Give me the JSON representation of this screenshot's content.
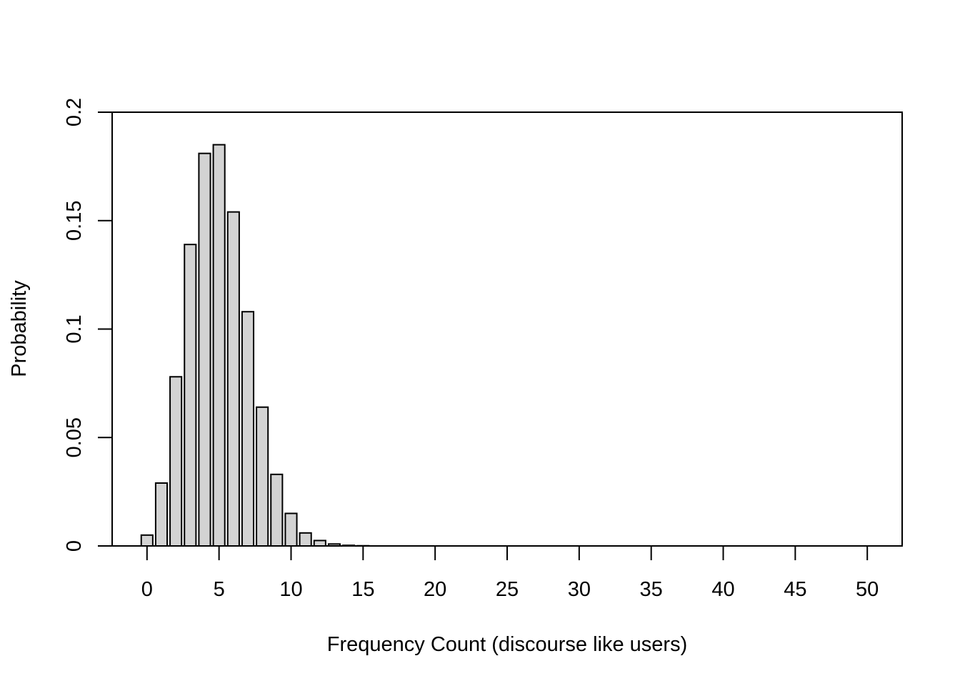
{
  "chart_data": {
    "type": "bar",
    "xlabel": "Frequency Count (discourse like users)",
    "ylabel": "Probability",
    "categories": [
      0,
      1,
      2,
      3,
      4,
      5,
      6,
      7,
      8,
      9,
      10,
      11,
      12,
      13,
      14,
      15,
      16,
      17,
      18,
      19,
      20,
      21,
      22,
      23,
      24,
      25,
      26,
      27,
      28,
      29,
      30,
      31,
      32,
      33,
      34,
      35,
      36,
      37,
      38,
      39,
      40,
      41,
      42,
      43,
      44,
      45,
      46,
      47,
      48,
      49,
      50
    ],
    "values": [
      0.005,
      0.029,
      0.078,
      0.139,
      0.181,
      0.185,
      0.154,
      0.108,
      0.064,
      0.033,
      0.015,
      0.006,
      0.0025,
      0.0009,
      0.0003,
      0.0001,
      0,
      0,
      0,
      0,
      0,
      0,
      0,
      0,
      0,
      0,
      0,
      0,
      0,
      0,
      0,
      0,
      0,
      0,
      0,
      0,
      0,
      0,
      0,
      0,
      0,
      0,
      0,
      0,
      0,
      0,
      0,
      0,
      0,
      0,
      0
    ],
    "xlim": [
      -2.42,
      52.42
    ],
    "ylim": [
      0,
      0.2
    ],
    "x_ticks": [
      0,
      5,
      10,
      15,
      20,
      25,
      30,
      35,
      40,
      45,
      50
    ],
    "x_tick_labels": [
      "0",
      "5",
      "10",
      "15",
      "20",
      "25",
      "30",
      "35",
      "40",
      "45",
      "50"
    ],
    "y_ticks": [
      0,
      0.05,
      0.1,
      0.15,
      0.2
    ],
    "y_tick_labels": [
      "0",
      "0.05",
      "0.1",
      "0.15",
      "0.2"
    ],
    "grid": false,
    "bar_color": "#d3d3d3",
    "edge_color": "#000000"
  }
}
